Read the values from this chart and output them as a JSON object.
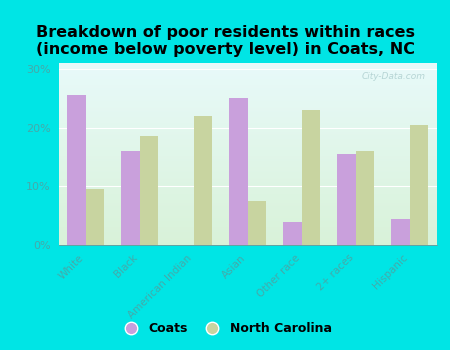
{
  "title": "Breakdown of poor residents within races\n(income below poverty level) in Coats, NC",
  "categories": [
    "White",
    "Black",
    "American Indian",
    "Asian",
    "Other race",
    "2+ races",
    "Hispanic"
  ],
  "coats_values": [
    25.5,
    16.0,
    0.0,
    25.0,
    4.0,
    15.5,
    4.5
  ],
  "nc_values": [
    9.5,
    18.5,
    22.0,
    7.5,
    23.0,
    16.0,
    20.5
  ],
  "coats_color": "#c9a0dc",
  "nc_color": "#c8d4a0",
  "background_color": "#00e5e5",
  "bar_width": 0.35,
  "ylim": [
    0,
    31
  ],
  "yticks": [
    0,
    10,
    20,
    30
  ],
  "ytick_labels": [
    "0%",
    "10%",
    "20%",
    "30%"
  ],
  "legend_labels": [
    "Coats",
    "North Carolina"
  ],
  "title_fontsize": 11.5,
  "watermark": "City-Data.com",
  "tick_color": "#44aaaa",
  "label_color": "#44aaaa"
}
